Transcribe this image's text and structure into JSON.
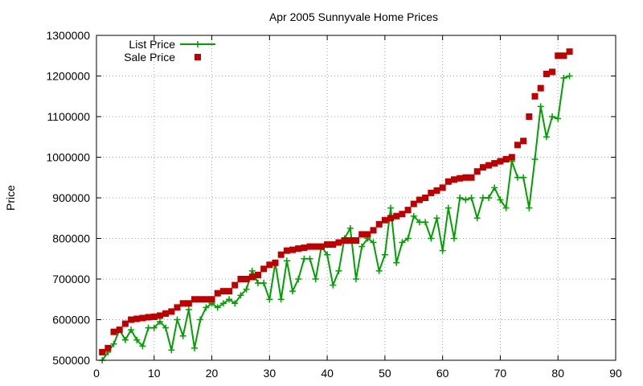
{
  "chart_data": {
    "type": "line",
    "title": "Apr 2005 Sunnyvale Home Prices",
    "xlabel": "",
    "ylabel": "Price",
    "xlim": [
      0,
      90
    ],
    "ylim": [
      500000,
      1300000
    ],
    "xticks": [
      0,
      10,
      20,
      30,
      40,
      50,
      60,
      70,
      80,
      90
    ],
    "yticks": [
      500000,
      600000,
      700000,
      800000,
      900000,
      1000000,
      1100000,
      1200000,
      1300000
    ],
    "grid": true,
    "legend_position": "top-left",
    "series": [
      {
        "name": "List Price",
        "style": "line+cross",
        "color": "#00a000",
        "x": [
          1,
          2,
          3,
          4,
          5,
          6,
          7,
          8,
          9,
          10,
          11,
          12,
          13,
          14,
          15,
          16,
          17,
          18,
          19,
          20,
          21,
          22,
          23,
          24,
          25,
          26,
          27,
          28,
          29,
          30,
          31,
          32,
          33,
          34,
          35,
          36,
          37,
          38,
          39,
          40,
          41,
          42,
          43,
          44,
          45,
          46,
          47,
          48,
          49,
          50,
          51,
          52,
          53,
          54,
          55,
          56,
          57,
          58,
          59,
          60,
          61,
          62,
          63,
          64,
          65,
          66,
          67,
          68,
          69,
          70,
          71,
          72,
          73,
          74,
          75,
          76,
          77,
          78,
          79,
          80,
          81,
          82
        ],
        "y": [
          500000,
          520000,
          540000,
          575000,
          550000,
          575000,
          550000,
          535000,
          580000,
          580000,
          595000,
          580000,
          525000,
          600000,
          560000,
          625000,
          530000,
          600000,
          630000,
          640000,
          630000,
          640000,
          650000,
          640000,
          660000,
          675000,
          720000,
          690000,
          690000,
          650000,
          740000,
          650000,
          745000,
          670000,
          700000,
          750000,
          750000,
          700000,
          780000,
          760000,
          685000,
          720000,
          800000,
          825000,
          700000,
          780000,
          800000,
          790000,
          720000,
          760000,
          875000,
          740000,
          790000,
          800000,
          855000,
          840000,
          840000,
          800000,
          850000,
          770000,
          875000,
          800000,
          900000,
          895000,
          900000,
          850000,
          900000,
          900000,
          925000,
          895000,
          875000,
          990000,
          950000,
          950000,
          875000,
          995000,
          1125000,
          1050000,
          1100000,
          1095000,
          1195000,
          1200000
        ]
      },
      {
        "name": "Sale Price",
        "style": "square",
        "color": "#c00000",
        "x": [
          1,
          2,
          3,
          4,
          5,
          6,
          7,
          8,
          9,
          10,
          11,
          12,
          13,
          14,
          15,
          16,
          17,
          18,
          19,
          20,
          21,
          22,
          23,
          24,
          25,
          26,
          27,
          28,
          29,
          30,
          31,
          32,
          33,
          34,
          35,
          36,
          37,
          38,
          39,
          40,
          41,
          42,
          43,
          44,
          45,
          46,
          47,
          48,
          49,
          50,
          51,
          52,
          53,
          54,
          55,
          56,
          57,
          58,
          59,
          60,
          61,
          62,
          63,
          64,
          65,
          66,
          67,
          68,
          69,
          70,
          71,
          72,
          73,
          74,
          75,
          76,
          77,
          78,
          79,
          80,
          81,
          82
        ],
        "y": [
          520000,
          530000,
          570000,
          575000,
          590000,
          600000,
          602000,
          604000,
          606000,
          607000,
          610000,
          615000,
          620000,
          630000,
          640000,
          640000,
          650000,
          650000,
          650000,
          650000,
          665000,
          670000,
          670000,
          685000,
          700000,
          700000,
          705000,
          710000,
          725000,
          735000,
          740000,
          760000,
          770000,
          772000,
          775000,
          777000,
          780000,
          780000,
          780000,
          785000,
          785000,
          790000,
          795000,
          795000,
          795000,
          810000,
          810000,
          820000,
          835000,
          845000,
          850000,
          855000,
          860000,
          870000,
          885000,
          895000,
          900000,
          912000,
          918000,
          925000,
          940000,
          945000,
          948000,
          950000,
          950000,
          965000,
          975000,
          980000,
          985000,
          990000,
          995000,
          1000000,
          1030000,
          1040000,
          1100000,
          1150000,
          1170000,
          1205000,
          1210000,
          1250000,
          1250000,
          1260000
        ]
      }
    ]
  }
}
